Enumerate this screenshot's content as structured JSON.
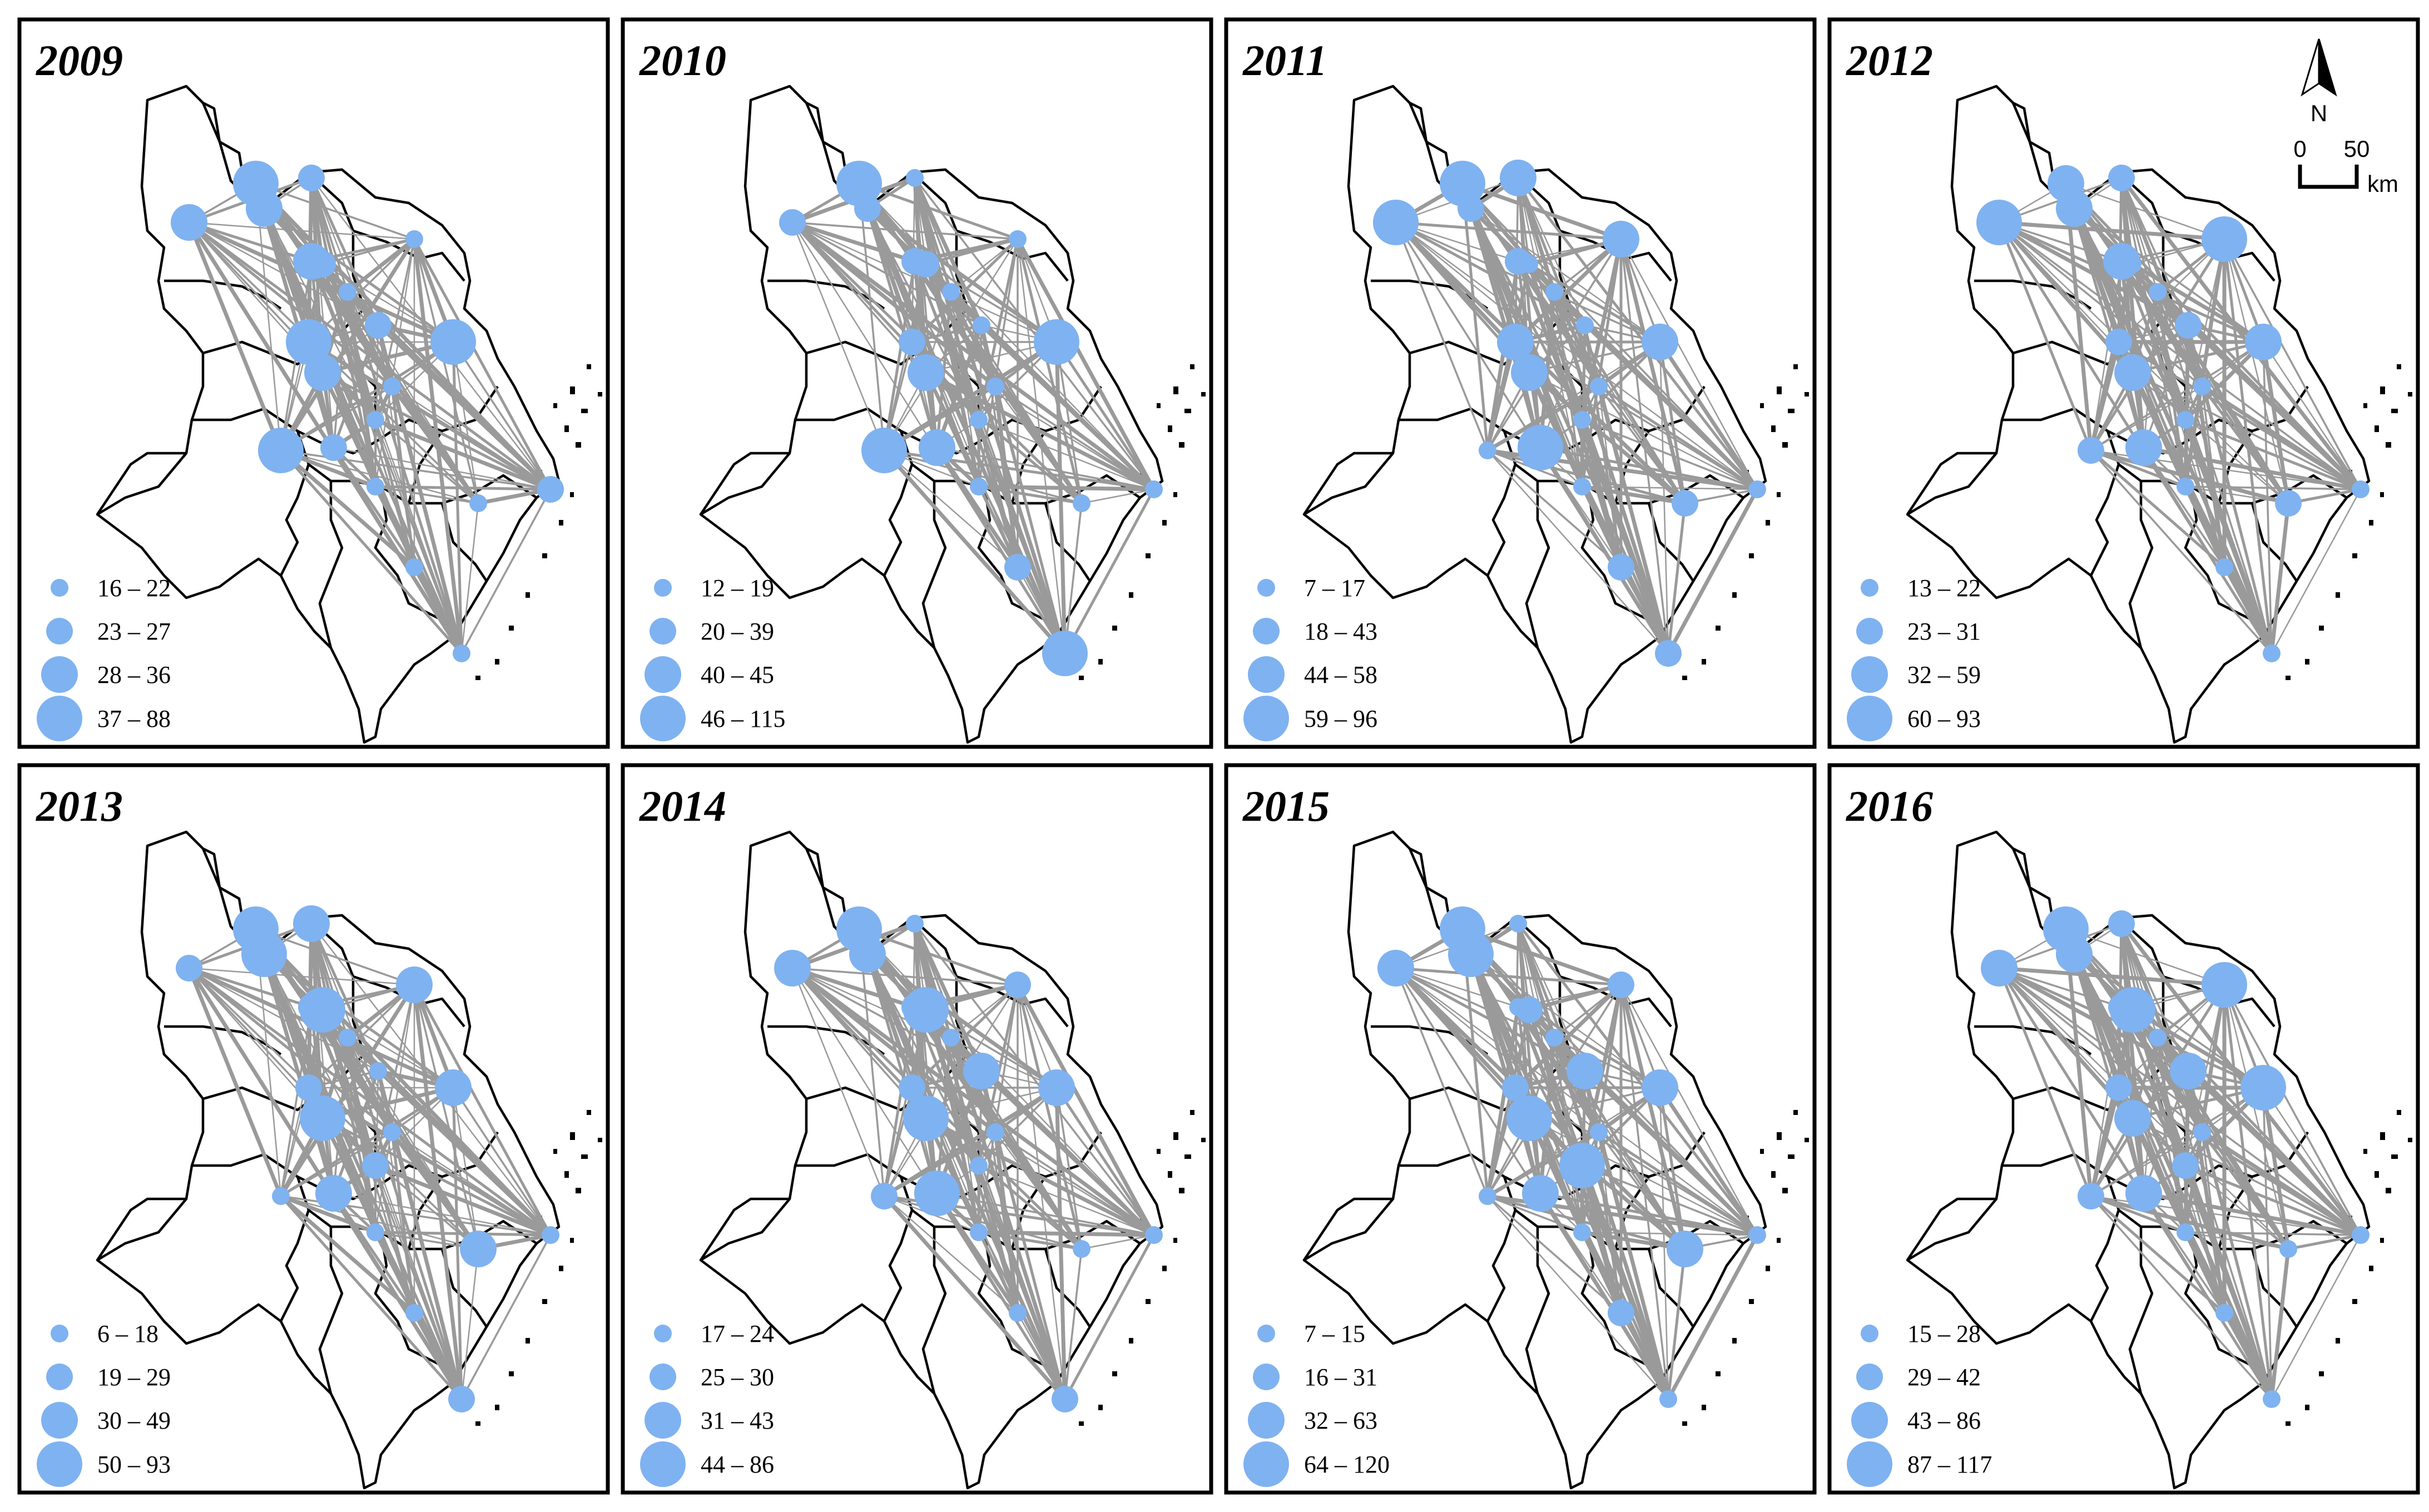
{
  "figure": {
    "north_arrow_label": "N",
    "scale_bar": {
      "start": "0",
      "end": "50",
      "unit": "km"
    },
    "colors": {
      "node": "#7fb2f0",
      "link": "#9a9a9a",
      "boundary": "#000000"
    }
  },
  "panels": [
    {
      "year": "2009",
      "legend": [
        "16 – 22",
        "23 – 27",
        "28 – 36",
        "37 – 88"
      ],
      "nodes": [
        [
          0,
          3
        ],
        [
          1,
          4
        ],
        [
          2,
          2
        ],
        [
          3,
          3
        ],
        [
          4,
          1
        ],
        [
          5,
          2
        ],
        [
          6,
          3
        ],
        [
          7,
          1
        ],
        [
          8,
          2
        ],
        [
          9,
          4
        ],
        [
          10,
          1
        ],
        [
          11,
          4
        ],
        [
          12,
          3
        ],
        [
          13,
          1
        ],
        [
          14,
          2
        ],
        [
          15,
          4
        ],
        [
          16,
          1
        ],
        [
          17,
          1
        ],
        [
          18,
          2
        ],
        [
          19,
          1
        ],
        [
          20,
          1
        ]
      ]
    },
    {
      "year": "2010",
      "legend": [
        "12 – 19",
        "20 – 39",
        "40 – 45",
        "46 – 115"
      ],
      "nodes": [
        [
          0,
          2
        ],
        [
          1,
          4
        ],
        [
          2,
          1
        ],
        [
          3,
          2
        ],
        [
          4,
          1
        ],
        [
          5,
          2
        ],
        [
          6,
          2
        ],
        [
          7,
          1
        ],
        [
          8,
          1
        ],
        [
          9,
          2
        ],
        [
          10,
          1
        ],
        [
          11,
          4
        ],
        [
          12,
          3
        ],
        [
          13,
          1
        ],
        [
          14,
          3
        ],
        [
          15,
          4
        ],
        [
          16,
          1
        ],
        [
          17,
          1
        ],
        [
          18,
          1
        ],
        [
          19,
          4
        ],
        [
          20,
          2
        ]
      ]
    },
    {
      "year": "2011",
      "legend": [
        "7 – 17",
        "18 – 43",
        "44 – 58",
        "59 – 96"
      ],
      "nodes": [
        [
          0,
          4
        ],
        [
          1,
          4
        ],
        [
          2,
          3
        ],
        [
          3,
          2
        ],
        [
          4,
          3
        ],
        [
          5,
          1
        ],
        [
          6,
          2
        ],
        [
          7,
          1
        ],
        [
          8,
          1
        ],
        [
          9,
          3
        ],
        [
          10,
          1
        ],
        [
          11,
          3
        ],
        [
          12,
          3
        ],
        [
          13,
          1
        ],
        [
          14,
          4
        ],
        [
          15,
          1
        ],
        [
          16,
          1
        ],
        [
          17,
          2
        ],
        [
          18,
          1
        ],
        [
          19,
          2
        ],
        [
          20,
          2
        ]
      ]
    },
    {
      "year": "2012",
      "legend": [
        "13 – 22",
        "23 – 31",
        "32 – 59",
        "60 – 93"
      ],
      "nodes": [
        [
          0,
          4
        ],
        [
          1,
          3
        ],
        [
          2,
          2
        ],
        [
          3,
          3
        ],
        [
          4,
          4
        ],
        [
          5,
          1
        ],
        [
          6,
          3
        ],
        [
          7,
          1
        ],
        [
          8,
          2
        ],
        [
          9,
          2
        ],
        [
          10,
          1
        ],
        [
          11,
          3
        ],
        [
          12,
          3
        ],
        [
          13,
          1
        ],
        [
          14,
          3
        ],
        [
          15,
          2
        ],
        [
          16,
          1
        ],
        [
          17,
          2
        ],
        [
          18,
          1
        ],
        [
          19,
          1
        ],
        [
          20,
          1
        ]
      ]
    },
    {
      "year": "2013",
      "legend": [
        "6 – 18",
        "19 – 29",
        "30 – 49",
        "50 – 93"
      ],
      "nodes": [
        [
          0,
          2
        ],
        [
          1,
          4
        ],
        [
          2,
          3
        ],
        [
          3,
          4
        ],
        [
          4,
          3
        ],
        [
          5,
          4
        ],
        [
          6,
          2
        ],
        [
          7,
          1
        ],
        [
          8,
          1
        ],
        [
          9,
          2
        ],
        [
          10,
          1
        ],
        [
          11,
          3
        ],
        [
          12,
          4
        ],
        [
          13,
          2
        ],
        [
          14,
          3
        ],
        [
          15,
          1
        ],
        [
          16,
          1
        ],
        [
          17,
          3
        ],
        [
          18,
          1
        ],
        [
          19,
          2
        ],
        [
          20,
          1
        ]
      ]
    },
    {
      "year": "2014",
      "legend": [
        "17 – 24",
        "25 – 30",
        "31 – 43",
        "44 – 86"
      ],
      "nodes": [
        [
          0,
          3
        ],
        [
          1,
          4
        ],
        [
          2,
          1
        ],
        [
          3,
          3
        ],
        [
          4,
          2
        ],
        [
          5,
          4
        ],
        [
          6,
          2
        ],
        [
          7,
          1
        ],
        [
          8,
          3
        ],
        [
          9,
          2
        ],
        [
          10,
          1
        ],
        [
          11,
          3
        ],
        [
          12,
          4
        ],
        [
          13,
          1
        ],
        [
          14,
          4
        ],
        [
          15,
          2
        ],
        [
          16,
          1
        ],
        [
          17,
          1
        ],
        [
          18,
          1
        ],
        [
          19,
          2
        ],
        [
          20,
          1
        ]
      ]
    },
    {
      "year": "2015",
      "legend": [
        "7 – 15",
        "16 – 31",
        "32 – 63",
        "64 – 120"
      ],
      "nodes": [
        [
          0,
          3
        ],
        [
          1,
          4
        ],
        [
          2,
          1
        ],
        [
          3,
          4
        ],
        [
          4,
          2
        ],
        [
          5,
          2
        ],
        [
          6,
          1
        ],
        [
          7,
          1
        ],
        [
          8,
          3
        ],
        [
          9,
          2
        ],
        [
          10,
          1
        ],
        [
          11,
          3
        ],
        [
          12,
          4
        ],
        [
          13,
          4
        ],
        [
          14,
          3
        ],
        [
          15,
          1
        ],
        [
          16,
          1
        ],
        [
          17,
          3
        ],
        [
          18,
          1
        ],
        [
          19,
          1
        ],
        [
          20,
          2
        ]
      ]
    },
    {
      "year": "2016",
      "legend": [
        "15 – 28",
        "29 – 42",
        "43 – 86",
        "87 – 117"
      ],
      "nodes": [
        [
          0,
          3
        ],
        [
          1,
          4
        ],
        [
          2,
          2
        ],
        [
          3,
          3
        ],
        [
          4,
          4
        ],
        [
          5,
          4
        ],
        [
          6,
          2
        ],
        [
          7,
          1
        ],
        [
          8,
          3
        ],
        [
          9,
          2
        ],
        [
          10,
          1
        ],
        [
          11,
          4
        ],
        [
          12,
          3
        ],
        [
          13,
          2
        ],
        [
          14,
          3
        ],
        [
          15,
          2
        ],
        [
          16,
          1
        ],
        [
          17,
          1
        ],
        [
          18,
          1
        ],
        [
          19,
          1
        ],
        [
          20,
          1
        ]
      ]
    }
  ]
}
